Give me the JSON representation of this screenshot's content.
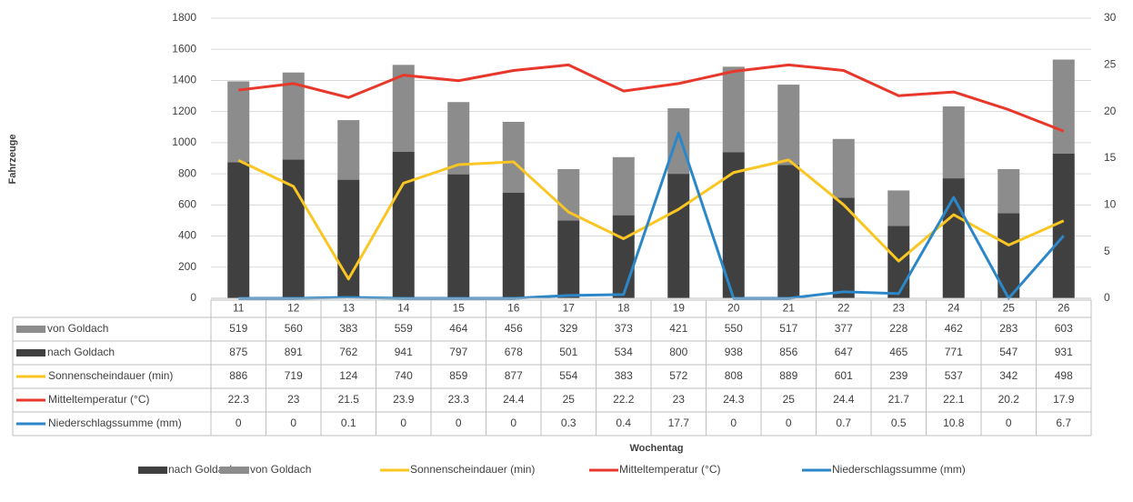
{
  "chart_data": {
    "type": "bar",
    "stacked": true,
    "categories": [
      "11",
      "12",
      "13",
      "14",
      "15",
      "16",
      "17",
      "18",
      "19",
      "20",
      "21",
      "22",
      "23",
      "24",
      "25",
      "26"
    ],
    "series": [
      {
        "name": "nach Goldach",
        "type": "bar",
        "color": "#404040",
        "axis": "y",
        "values": [
          875,
          891,
          762,
          941,
          797,
          678,
          501,
          534,
          800,
          938,
          856,
          647,
          465,
          771,
          547,
          931
        ]
      },
      {
        "name": "von Goldach",
        "type": "bar",
        "color": "#8c8c8c",
        "axis": "y",
        "values": [
          519,
          560,
          383,
          559,
          464,
          456,
          329,
          373,
          421,
          550,
          517,
          377,
          228,
          462,
          283,
          603
        ]
      },
      {
        "name": "Sonnenscheindauer (min)",
        "type": "line",
        "color": "#f9c623",
        "axis": "y",
        "values": [
          886,
          719,
          124,
          740,
          859,
          877,
          554,
          383,
          572,
          808,
          889,
          601,
          239,
          537,
          342,
          498
        ]
      },
      {
        "name": "Mitteltemperatur (°C)",
        "type": "line",
        "color": "#e8382c",
        "axis": "y2",
        "values": [
          22.3,
          23,
          21.5,
          23.9,
          23.3,
          24.4,
          25,
          22.2,
          23,
          24.3,
          25,
          24.4,
          21.7,
          22.1,
          20.2,
          17.9
        ]
      },
      {
        "name": "Niederschlagssumme (mm)",
        "type": "line",
        "color": "#2c87c9",
        "axis": "y2",
        "values": [
          0,
          0,
          0.1,
          0,
          0,
          0,
          0.3,
          0.4,
          17.7,
          0,
          0,
          0.7,
          0.5,
          10.8,
          0,
          6.7
        ]
      }
    ],
    "ylabel": "Fahrzeuge",
    "xlabel": "Wochentag",
    "ylim": [
      0,
      1800
    ],
    "yticks": [
      0,
      200,
      400,
      600,
      800,
      1000,
      1200,
      1400,
      1600,
      1800
    ],
    "y2lim": [
      0,
      30
    ],
    "y2ticks": [
      0,
      5,
      10,
      15,
      20,
      25,
      30
    ],
    "grid": true,
    "legend": "bottom"
  }
}
